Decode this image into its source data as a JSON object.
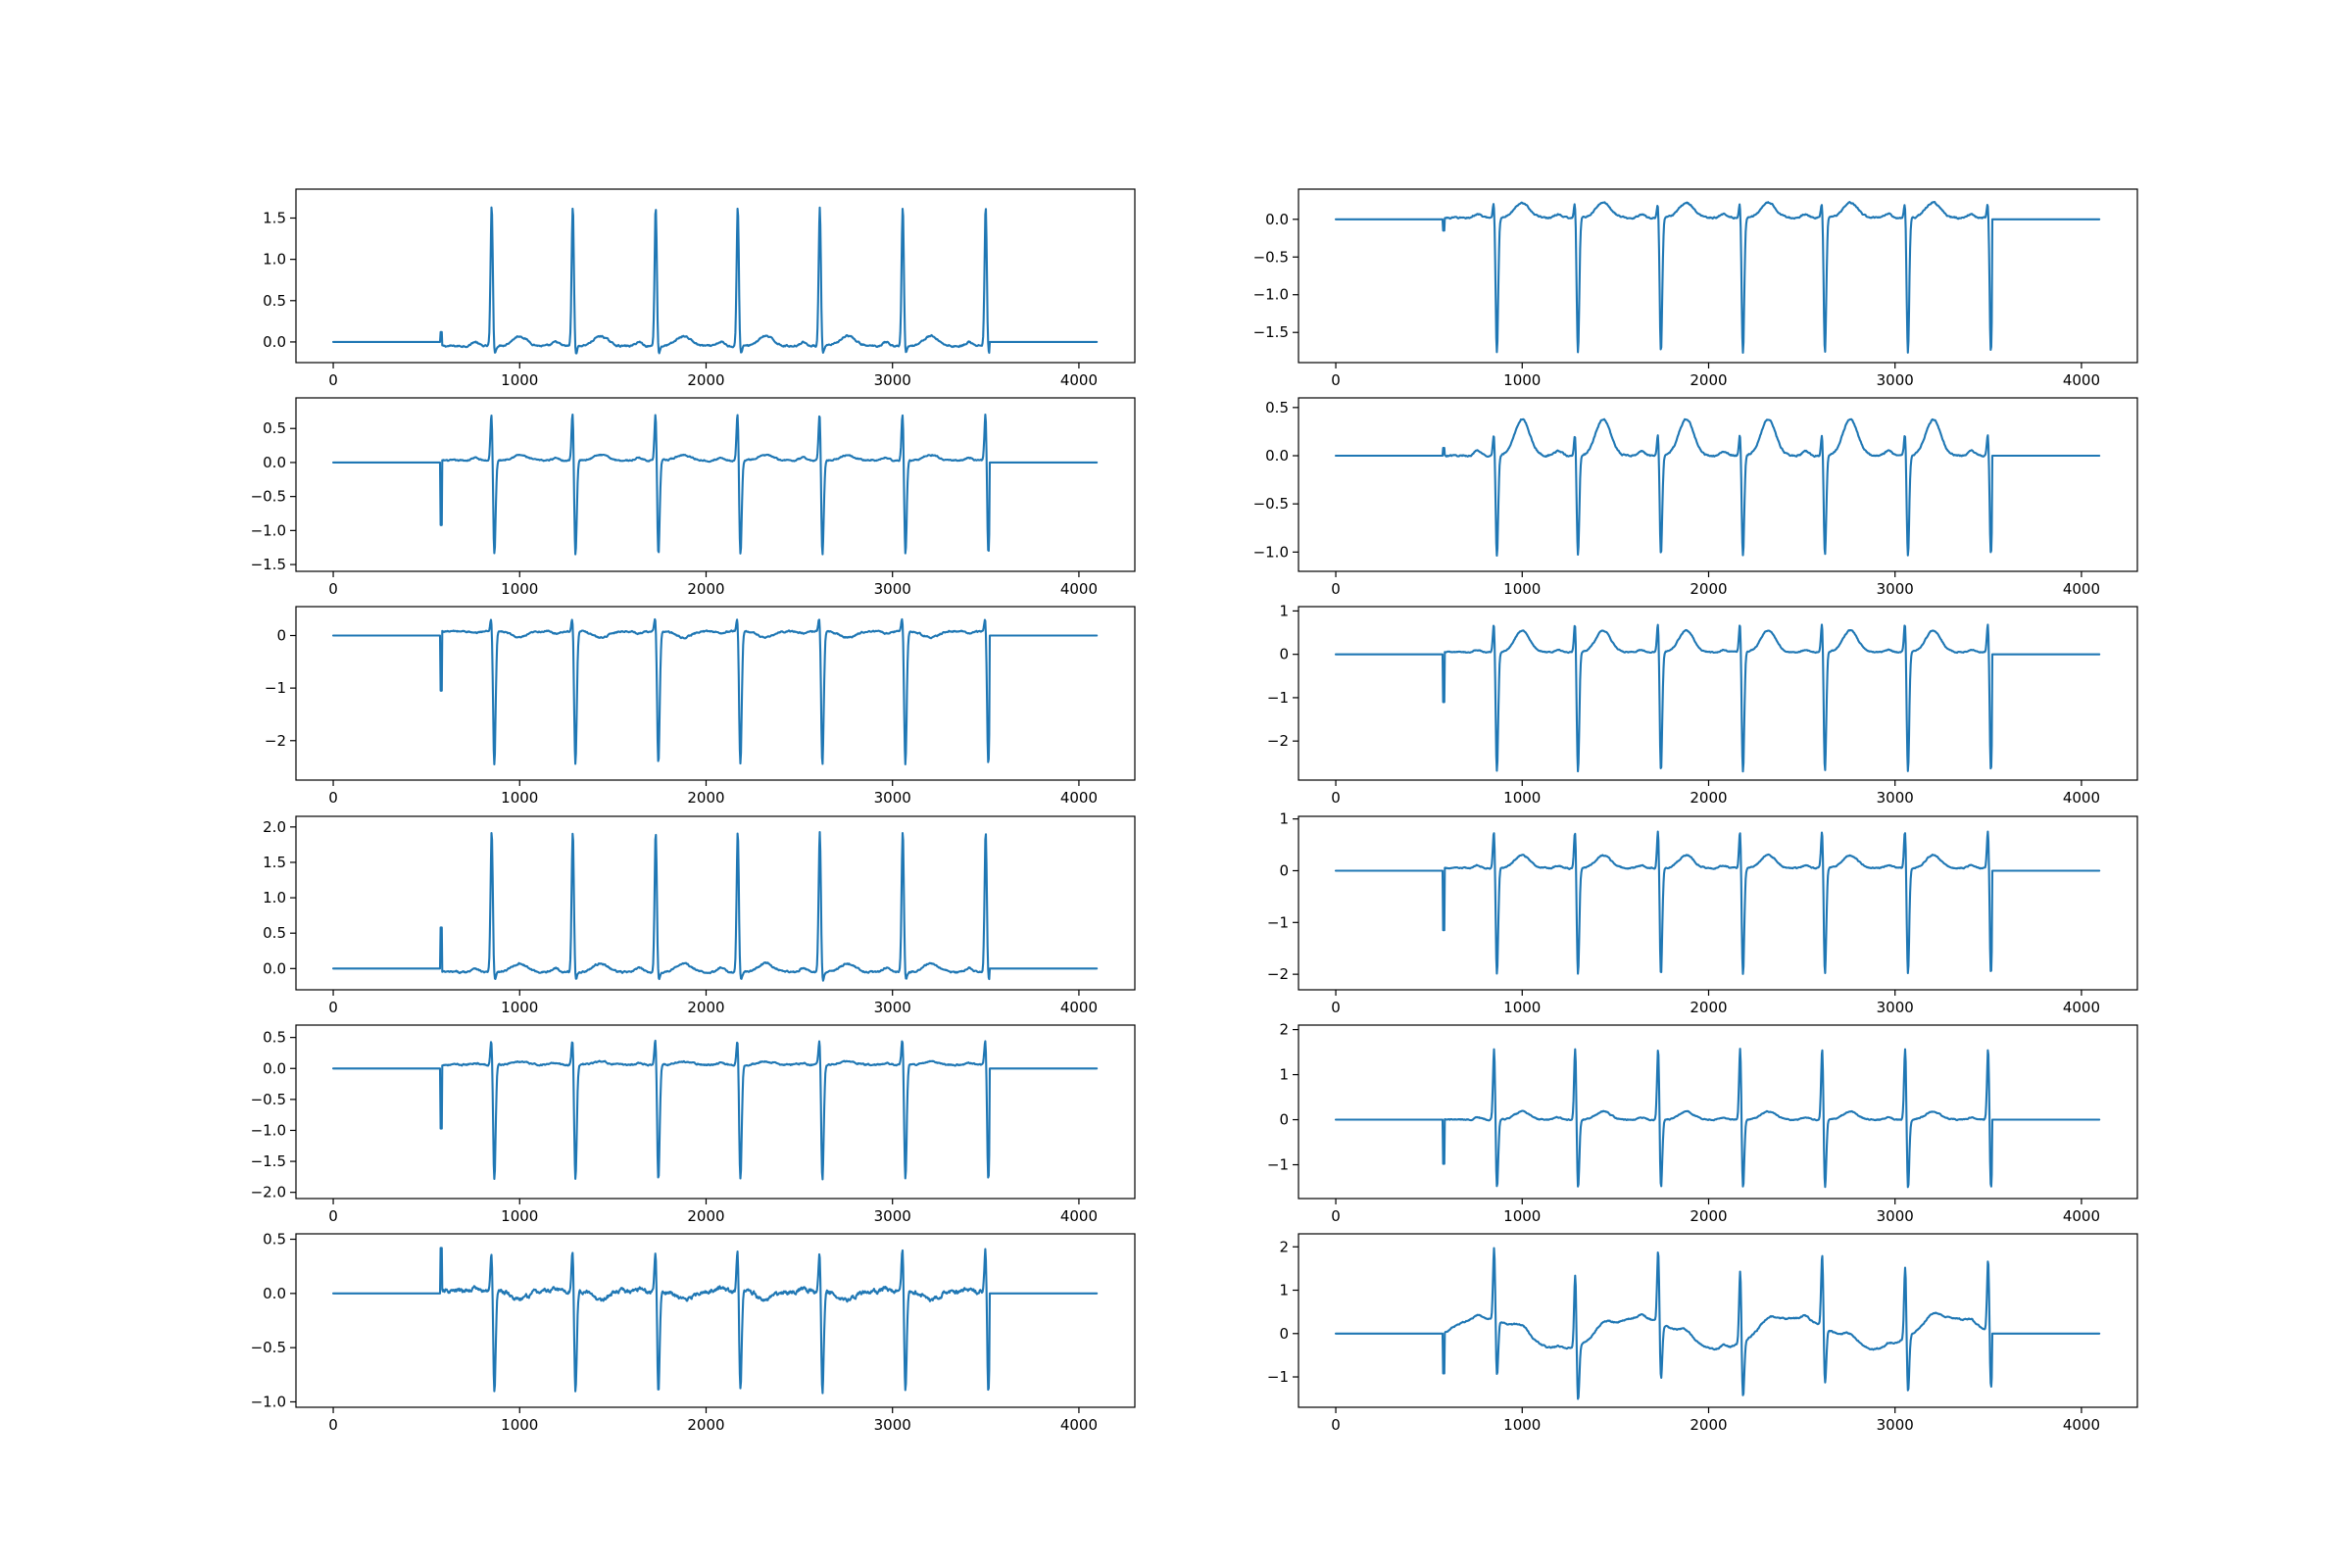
{
  "figure": {
    "background": "#ffffff",
    "line_color": "#1f77b4"
  },
  "chart_data": [
    {
      "type": "line",
      "panel": "left-1",
      "xlim": [
        -200,
        4300
      ],
      "ylim": [
        -0.25,
        1.85
      ],
      "xticks": [
        0,
        1000,
        2000,
        3000,
        4000
      ],
      "xtick_labels": [
        "0",
        "1000",
        "2000",
        "3000",
        "4000"
      ],
      "yticks": [
        0.0,
        0.5,
        1.0,
        1.5
      ],
      "ytick_labels": [
        "0.0",
        "0.5",
        "1.0",
        "1.5"
      ],
      "signal": {
        "n": 4096,
        "onset": 575,
        "offset": 3520,
        "beats": [
          850,
          1285,
          1730,
          2170,
          2610,
          3055,
          3500
        ],
        "peak": 1.7,
        "trough": -0.12,
        "onset_spike": 0.12,
        "t_wave": 0.12,
        "p_wave": 0.05,
        "noise": 0.025,
        "baseline": -0.05
      }
    },
    {
      "type": "line",
      "panel": "left-2",
      "xlim": [
        -200,
        4300
      ],
      "ylim": [
        -1.6,
        0.95
      ],
      "xticks": [
        0,
        1000,
        2000,
        3000,
        4000
      ],
      "xtick_labels": [
        "0",
        "1000",
        "2000",
        "3000",
        "4000"
      ],
      "yticks": [
        -1.5,
        -1.0,
        -0.5,
        0.0,
        0.5
      ],
      "ytick_labels": [
        "−1.5",
        "−1.0",
        "−0.5",
        "0.0",
        "0.5"
      ],
      "signal": {
        "n": 4096,
        "onset": 575,
        "offset": 3520,
        "beats": [
          850,
          1285,
          1730,
          2170,
          2610,
          3055,
          3500
        ],
        "peak": 0.82,
        "trough": -1.42,
        "onset_spike": -0.92,
        "t_wave": 0.08,
        "p_wave": 0.04,
        "noise": 0.025,
        "baseline": 0.03
      }
    },
    {
      "type": "line",
      "panel": "left-3",
      "xlim": [
        -200,
        4300
      ],
      "ylim": [
        -2.75,
        0.55
      ],
      "xticks": [
        0,
        1000,
        2000,
        3000,
        4000
      ],
      "xtick_labels": [
        "0",
        "1000",
        "2000",
        "3000",
        "4000"
      ],
      "yticks": [
        -2,
        -1,
        0
      ],
      "ytick_labels": [
        "−2",
        "−1",
        "0"
      ],
      "signal": {
        "n": 4096,
        "onset": 575,
        "offset": 3520,
        "beats": [
          850,
          1285,
          1730,
          2170,
          2610,
          3055,
          3500
        ],
        "peak": 0.4,
        "trough": -2.55,
        "onset_spike": -1.05,
        "t_wave": -0.12,
        "p_wave": -0.04,
        "noise": 0.035,
        "baseline": 0.08
      }
    },
    {
      "type": "line",
      "panel": "left-4",
      "xlim": [
        -200,
        4300
      ],
      "ylim": [
        -0.3,
        2.15
      ],
      "xticks": [
        0,
        1000,
        2000,
        3000,
        4000
      ],
      "xtick_labels": [
        "0",
        "1000",
        "2000",
        "3000",
        "4000"
      ],
      "yticks": [
        0.0,
        0.5,
        1.0,
        1.5,
        2.0
      ],
      "ytick_labels": [
        "0.0",
        "0.5",
        "1.0",
        "1.5",
        "2.0"
      ],
      "signal": {
        "n": 4096,
        "onset": 575,
        "offset": 3520,
        "beats": [
          850,
          1285,
          1730,
          2170,
          2610,
          3055,
          3500
        ],
        "peak": 2.0,
        "trough": -0.15,
        "onset_spike": 0.58,
        "t_wave": 0.12,
        "p_wave": 0.06,
        "noise": 0.03,
        "baseline": -0.05
      }
    },
    {
      "type": "line",
      "panel": "left-5",
      "xlim": [
        -200,
        4300
      ],
      "ylim": [
        -2.1,
        0.7
      ],
      "xticks": [
        0,
        1000,
        2000,
        3000,
        4000
      ],
      "xtick_labels": [
        "0",
        "1000",
        "2000",
        "3000",
        "4000"
      ],
      "yticks": [
        -2.0,
        -1.5,
        -1.0,
        -0.5,
        0.0,
        0.5
      ],
      "ytick_labels": [
        "−2.0",
        "−1.5",
        "−1.0",
        "−0.5",
        "0.0",
        "0.5"
      ],
      "signal": {
        "n": 4096,
        "onset": 575,
        "offset": 3520,
        "beats": [
          850,
          1285,
          1730,
          2170,
          2610,
          3055,
          3500
        ],
        "peak": 0.55,
        "trough": -1.88,
        "onset_spike": -0.97,
        "t_wave": 0.05,
        "p_wave": 0.03,
        "noise": 0.03,
        "baseline": 0.06
      }
    },
    {
      "type": "line",
      "panel": "left-6",
      "xlim": [
        -200,
        4300
      ],
      "ylim": [
        -1.05,
        0.55
      ],
      "xticks": [
        0,
        1000,
        2000,
        3000,
        4000
      ],
      "xtick_labels": [
        "0",
        "1000",
        "2000",
        "3000",
        "4000"
      ],
      "yticks": [
        -1.0,
        -0.5,
        0.0,
        0.5
      ],
      "ytick_labels": [
        "−1.0",
        "−0.5",
        "0.0",
        "0.5"
      ],
      "signal": {
        "n": 4096,
        "onset": 575,
        "offset": 3520,
        "beats": [
          850,
          1285,
          1730,
          2170,
          2610,
          3055,
          3500
        ],
        "peak": 0.46,
        "trough": -0.95,
        "onset_spike": 0.42,
        "t_wave": -0.08,
        "p_wave": 0.03,
        "noise": 0.05,
        "baseline": 0.02
      }
    },
    {
      "type": "line",
      "panel": "right-1",
      "xlim": [
        -200,
        4300
      ],
      "ylim": [
        -1.9,
        0.4
      ],
      "xticks": [
        0,
        1000,
        2000,
        3000,
        4000
      ],
      "xtick_labels": [
        "0",
        "1000",
        "2000",
        "3000",
        "4000"
      ],
      "yticks": [
        -1.5,
        -1.0,
        -0.5,
        0.0
      ],
      "ytick_labels": [
        "−1.5",
        "−1.0",
        "−0.5",
        "0.0"
      ],
      "signal": {
        "n": 4096,
        "onset": 575,
        "offset": 3520,
        "beats": [
          850,
          1285,
          1730,
          2170,
          2610,
          3055,
          3500
        ],
        "peak": 0.3,
        "trough": -1.8,
        "onset_spike": -0.15,
        "t_wave": 0.2,
        "p_wave": 0.05,
        "noise": 0.025,
        "baseline": 0.02
      }
    },
    {
      "type": "line",
      "panel": "right-2",
      "xlim": [
        -200,
        4300
      ],
      "ylim": [
        -1.2,
        0.6
      ],
      "xticks": [
        0,
        1000,
        2000,
        3000,
        4000
      ],
      "xtick_labels": [
        "0",
        "1000",
        "2000",
        "3000",
        "4000"
      ],
      "yticks": [
        -1.0,
        -0.5,
        0.0,
        0.5
      ],
      "ytick_labels": [
        "−1.0",
        "−0.5",
        "0.0",
        "0.5"
      ],
      "signal": {
        "n": 4096,
        "onset": 575,
        "offset": 3520,
        "beats": [
          850,
          1285,
          1730,
          2170,
          2610,
          3055,
          3500
        ],
        "peak": 0.3,
        "trough": -1.05,
        "onset_spike": 0.08,
        "t_wave": 0.38,
        "p_wave": 0.05,
        "noise": 0.02,
        "baseline": 0.0
      }
    },
    {
      "type": "line",
      "panel": "right-3",
      "xlim": [
        -200,
        4300
      ],
      "ylim": [
        -2.9,
        1.1
      ],
      "xticks": [
        0,
        1000,
        2000,
        3000,
        4000
      ],
      "xtick_labels": [
        "0",
        "1000",
        "2000",
        "3000",
        "4000"
      ],
      "yticks": [
        -2,
        -1,
        0,
        1
      ],
      "ytick_labels": [
        "−2",
        "−1",
        "0",
        "1"
      ],
      "signal": {
        "n": 4096,
        "onset": 575,
        "offset": 3520,
        "beats": [
          850,
          1285,
          1730,
          2170,
          2610,
          3055,
          3500
        ],
        "peak": 0.88,
        "trough": -2.8,
        "onset_spike": -1.1,
        "t_wave": 0.5,
        "p_wave": 0.05,
        "noise": 0.03,
        "baseline": 0.05
      }
    },
    {
      "type": "line",
      "panel": "right-4",
      "xlim": [
        -200,
        4300
      ],
      "ylim": [
        -2.3,
        1.05
      ],
      "xticks": [
        0,
        1000,
        2000,
        3000,
        4000
      ],
      "xtick_labels": [
        "0",
        "1000",
        "2000",
        "3000",
        "4000"
      ],
      "yticks": [
        -2,
        -1,
        0,
        1
      ],
      "ytick_labels": [
        "−2",
        "−1",
        "0",
        "1"
      ],
      "signal": {
        "n": 4096,
        "onset": 575,
        "offset": 3520,
        "beats": [
          850,
          1285,
          1730,
          2170,
          2610,
          3055,
          3500
        ],
        "peak": 0.9,
        "trough": -2.1,
        "onset_spike": -1.15,
        "t_wave": 0.25,
        "p_wave": 0.05,
        "noise": 0.03,
        "baseline": 0.05
      }
    },
    {
      "type": "line",
      "panel": "right-5",
      "xlim": [
        -200,
        4300
      ],
      "ylim": [
        -1.75,
        2.1
      ],
      "xticks": [
        0,
        1000,
        2000,
        3000,
        4000
      ],
      "xtick_labels": [
        "0",
        "1000",
        "2000",
        "3000",
        "4000"
      ],
      "yticks": [
        -1,
        0,
        1,
        2
      ],
      "ytick_labels": [
        "−1",
        "0",
        "1",
        "2"
      ],
      "signal": {
        "n": 4096,
        "onset": 575,
        "offset": 3520,
        "beats": [
          850,
          1285,
          1730,
          2170,
          2610,
          3055,
          3500
        ],
        "peak": 1.75,
        "trough": -1.6,
        "onset_spike": -0.98,
        "t_wave": 0.18,
        "p_wave": 0.05,
        "noise": 0.03,
        "baseline": 0.0
      }
    },
    {
      "type": "line",
      "panel": "right-6",
      "xlim": [
        -200,
        4300
      ],
      "ylim": [
        -1.7,
        2.3
      ],
      "xticks": [
        0,
        1000,
        2000,
        3000,
        4000
      ],
      "xtick_labels": [
        "0",
        "1000",
        "2000",
        "3000",
        "4000"
      ],
      "yticks": [
        -1,
        0,
        1,
        2
      ],
      "ytick_labels": [
        "−1",
        "0",
        "1",
        "2"
      ],
      "signal": {
        "n": 4096,
        "onset": 575,
        "offset": 3520,
        "beats": [
          850,
          1285,
          1730,
          2170,
          2610,
          3055,
          3500
        ],
        "peak": 1.8,
        "trough": -1.35,
        "onset_spike": -0.92,
        "t_wave": 0.2,
        "p_wave": 0.08,
        "noise": 0.04,
        "baseline": 0.0,
        "wander": 0.45
      }
    }
  ]
}
